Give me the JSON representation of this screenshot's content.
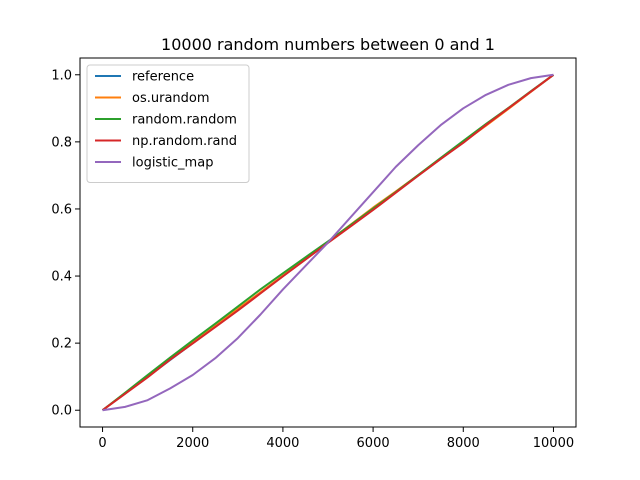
{
  "chart_data": {
    "type": "line",
    "title": "10000 random numbers between 0 and 1",
    "xlabel": "",
    "ylabel": "",
    "xlim": [
      -500,
      10500
    ],
    "ylim": [
      -0.05,
      1.05
    ],
    "xticks": [
      0,
      2000,
      4000,
      6000,
      8000,
      10000
    ],
    "yticks": [
      0.0,
      0.2,
      0.4,
      0.6,
      0.8,
      1.0
    ],
    "xtick_labels": [
      "0",
      "2000",
      "4000",
      "6000",
      "8000",
      "10000"
    ],
    "ytick_labels": [
      "0.0",
      "0.2",
      "0.4",
      "0.6",
      "0.8",
      "1.0"
    ],
    "grid": false,
    "legend_position": "upper-left",
    "x": [
      0,
      500,
      1000,
      1500,
      2000,
      2500,
      3000,
      3500,
      4000,
      4500,
      5000,
      5500,
      6000,
      6500,
      7000,
      7500,
      8000,
      8500,
      9000,
      9500,
      10000
    ],
    "series": [
      {
        "name": "reference",
        "color": "#1f77b4",
        "values": [
          0.0,
          0.05,
          0.1,
          0.15,
          0.2,
          0.25,
          0.3,
          0.35,
          0.4,
          0.45,
          0.5,
          0.55,
          0.6,
          0.65,
          0.7,
          0.75,
          0.8,
          0.85,
          0.9,
          0.95,
          1.0
        ]
      },
      {
        "name": "os.urandom",
        "color": "#ff7f0e",
        "values": [
          0.0,
          0.051,
          0.101,
          0.152,
          0.202,
          0.251,
          0.302,
          0.351,
          0.401,
          0.451,
          0.502,
          0.553,
          0.604,
          0.652,
          0.701,
          0.75,
          0.799,
          0.848,
          0.898,
          0.949,
          1.0
        ]
      },
      {
        "name": "random.random",
        "color": "#2ca02c",
        "values": [
          0.0,
          0.052,
          0.105,
          0.157,
          0.208,
          0.258,
          0.309,
          0.36,
          0.408,
          0.456,
          0.503,
          0.552,
          0.601,
          0.65,
          0.701,
          0.752,
          0.803,
          0.853,
          0.901,
          0.951,
          1.0
        ]
      },
      {
        "name": "np.random.rand",
        "color": "#d62728",
        "values": [
          0.0,
          0.049,
          0.098,
          0.151,
          0.199,
          0.248,
          0.297,
          0.348,
          0.399,
          0.449,
          0.499,
          0.548,
          0.597,
          0.648,
          0.699,
          0.749,
          0.797,
          0.85,
          0.9,
          0.95,
          1.0
        ]
      },
      {
        "name": "logistic_map",
        "color": "#9467bd",
        "values": [
          0.0,
          0.01,
          0.03,
          0.065,
          0.105,
          0.155,
          0.215,
          0.285,
          0.36,
          0.43,
          0.5,
          0.575,
          0.65,
          0.725,
          0.79,
          0.85,
          0.9,
          0.94,
          0.97,
          0.99,
          1.0
        ]
      }
    ]
  }
}
